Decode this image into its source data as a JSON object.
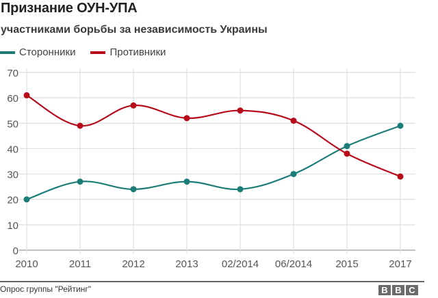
{
  "title": "Признание ОУН-УПА",
  "subtitle": "участниками борьбы за независимость Украины",
  "legend": [
    {
      "label": "Сторонники",
      "color": "#1c7d78"
    },
    {
      "label": "Противники",
      "color": "#b80c1a"
    }
  ],
  "source": "Опрос группы \"Рейтинг\"",
  "logo": {
    "letters": [
      "B",
      "B",
      "C"
    ]
  },
  "chart_data": {
    "type": "line",
    "title": "Признание ОУН-УПА",
    "subtitle": "участниками борьбы за независимость Украины",
    "xlabel": "",
    "ylabel": "",
    "categories": [
      "2010",
      "2011",
      "2012",
      "2013",
      "02/2014",
      "06/2014",
      "2015",
      "2017"
    ],
    "series": [
      {
        "name": "Сторонники",
        "color": "#1c7d78",
        "values": [
          20,
          27,
          24,
          27,
          24,
          30,
          41,
          49
        ]
      },
      {
        "name": "Противники",
        "color": "#b80c1a",
        "values": [
          61,
          49,
          57,
          52,
          55,
          51,
          38,
          29
        ]
      }
    ],
    "ylim": [
      0,
      70
    ],
    "yticks": [
      0,
      10,
      20,
      30,
      40,
      50,
      60,
      70
    ],
    "grid": true,
    "legend_position": "top-left",
    "smooth": true
  }
}
